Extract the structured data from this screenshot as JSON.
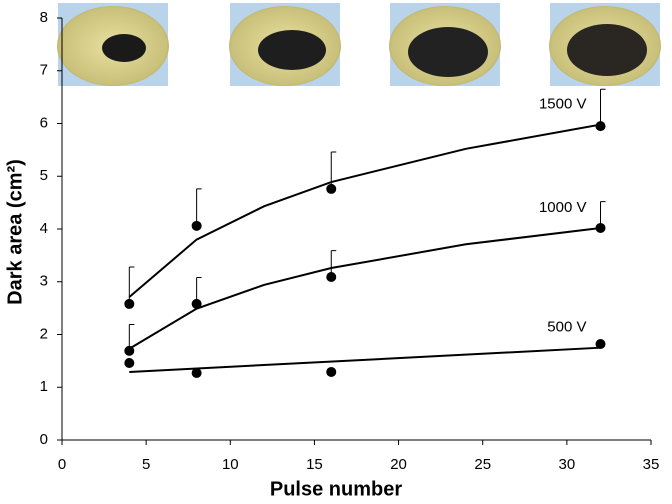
{
  "chart_data": {
    "type": "scatter",
    "xlabel": "Pulse number",
    "ylabel": "Dark area (cm²)",
    "xlim": [
      0,
      35
    ],
    "xticks": [
      0,
      5,
      10,
      15,
      20,
      25,
      30,
      35
    ],
    "ylim": [
      0,
      8
    ],
    "yticks": [
      0,
      1,
      2,
      3,
      4,
      5,
      6,
      7,
      8
    ],
    "grid": false,
    "series": [
      {
        "name": "1500 V",
        "color": "#000000",
        "x": [
          4,
          8,
          16,
          32
        ],
        "values": [
          2.58,
          4.06,
          4.76,
          5.95
        ],
        "errors": [
          0.7,
          0.7,
          0.7,
          0.7
        ],
        "trend": {
          "x": [
            4,
            8,
            12,
            16,
            24,
            32
          ],
          "values": [
            2.71,
            3.8,
            4.43,
            4.89,
            5.52,
            5.98
          ]
        }
      },
      {
        "name": "1000 V",
        "color": "#000000",
        "x": [
          4,
          8,
          16,
          32
        ],
        "values": [
          1.69,
          2.58,
          3.09,
          4.02
        ],
        "errors": [
          0.5,
          0.5,
          0.5,
          0.5
        ],
        "trend": {
          "x": [
            4,
            8,
            12,
            16,
            24,
            32
          ],
          "values": [
            1.73,
            2.49,
            2.94,
            3.26,
            3.71,
            4.02
          ]
        }
      },
      {
        "name": "500 V",
        "color": "#000000",
        "x": [
          4,
          8,
          16,
          32
        ],
        "values": [
          1.46,
          1.27,
          1.29,
          1.82
        ],
        "trend": {
          "x": [
            4,
            32
          ],
          "values": [
            1.29,
            1.75
          ]
        }
      }
    ]
  }
}
